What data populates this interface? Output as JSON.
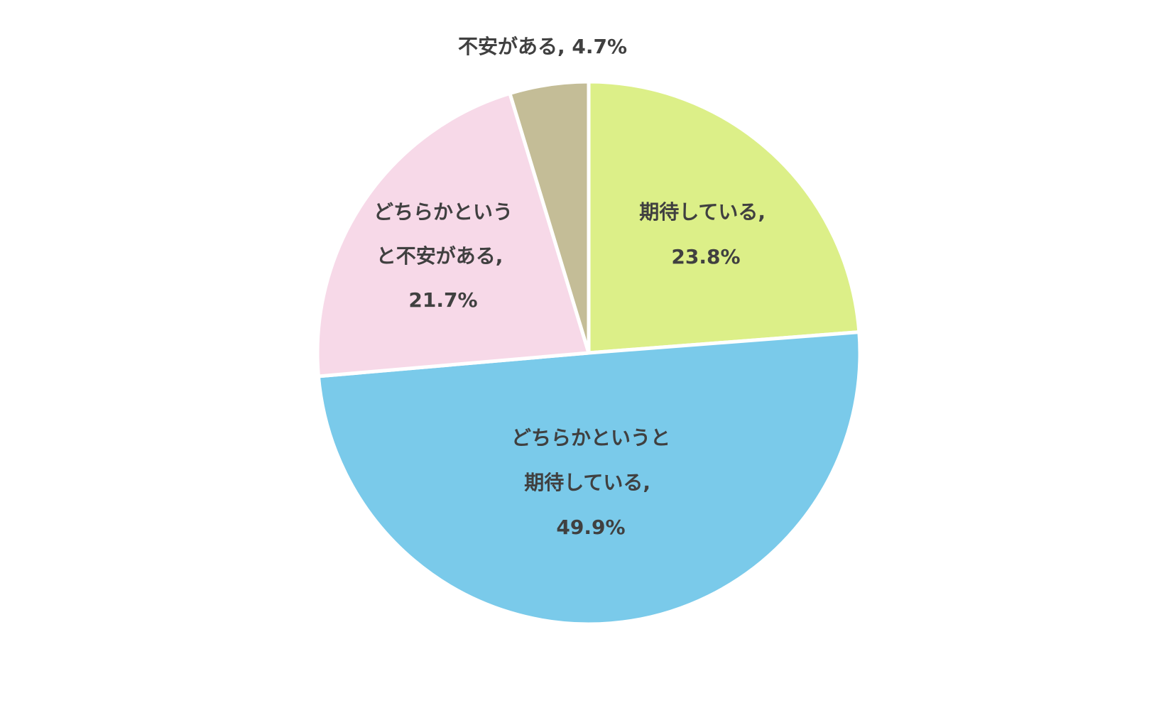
{
  "chart_data": {
    "type": "pie",
    "values": [
      23.8,
      49.9,
      21.7,
      4.7
    ],
    "value_labels": [
      "期待している, 23.8%",
      "どちらかというと期待している, 49.9%",
      "どちらかというと不安がある, 21.7%",
      "不安がある, 4.7%"
    ],
    "colors": [
      "#dcef88",
      "#7acaea",
      "#f7d9e8",
      "#c4bd97"
    ]
  }
}
